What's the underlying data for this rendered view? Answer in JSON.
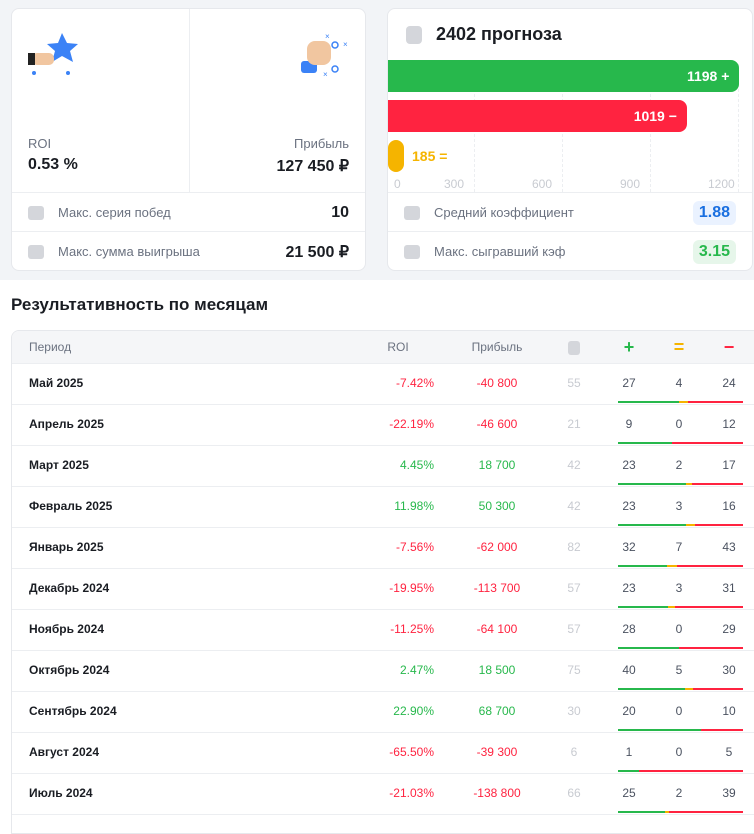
{
  "summary": {
    "roi_label": "ROI",
    "roi_value": "0.53 %",
    "profit_label": "Прибыль",
    "profit_value": "127 450 ₽",
    "max_streak_label": "Макс. серия побед",
    "max_streak_value": "10",
    "max_win_label": "Макс. сумма выигрыша",
    "max_win_value": "21 500 ₽"
  },
  "forecasts": {
    "title": "2402 прогноза",
    "wins": 1198,
    "wins_label": "1198 +",
    "losses": 1019,
    "losses_label": "1019 −",
    "draws": 185,
    "draws_label": "185 =",
    "axis": [
      "0",
      "300",
      "600",
      "900",
      "1200"
    ],
    "axis_max": 1200,
    "avg_coef_label": "Средний коэффициент",
    "avg_coef_value": "1.88",
    "max_coef_label": "Макс. сыгравший кэф",
    "max_coef_value": "3.15",
    "colors": {
      "win": "#27b84c",
      "loss": "#ff2340",
      "draw": "#f5b400"
    }
  },
  "monthly": {
    "title": "Результативность по месяцам",
    "headers": {
      "period": "Период",
      "roi": "ROI",
      "profit": "Прибыль",
      "plus": "+",
      "eq": "=",
      "minus": "−"
    },
    "rows": [
      {
        "period": "Май 2025",
        "roi": "-7.42%",
        "profit": "-40 800",
        "count": "55",
        "w": "27",
        "d": "4",
        "l": "24"
      },
      {
        "period": "Апрель 2025",
        "roi": "-22.19%",
        "profit": "-46 600",
        "count": "21",
        "w": "9",
        "d": "0",
        "l": "12"
      },
      {
        "period": "Март 2025",
        "roi": "4.45%",
        "profit": "18 700",
        "count": "42",
        "w": "23",
        "d": "2",
        "l": "17"
      },
      {
        "period": "Февраль 2025",
        "roi": "11.98%",
        "profit": "50 300",
        "count": "42",
        "w": "23",
        "d": "3",
        "l": "16"
      },
      {
        "period": "Январь 2025",
        "roi": "-7.56%",
        "profit": "-62 000",
        "count": "82",
        "w": "32",
        "d": "7",
        "l": "43"
      },
      {
        "period": "Декабрь 2024",
        "roi": "-19.95%",
        "profit": "-113 700",
        "count": "57",
        "w": "23",
        "d": "3",
        "l": "31"
      },
      {
        "period": "Ноябрь 2024",
        "roi": "-11.25%",
        "profit": "-64 100",
        "count": "57",
        "w": "28",
        "d": "0",
        "l": "29"
      },
      {
        "period": "Октябрь 2024",
        "roi": "2.47%",
        "profit": "18 500",
        "count": "75",
        "w": "40",
        "d": "5",
        "l": "30"
      },
      {
        "period": "Сентябрь 2024",
        "roi": "22.90%",
        "profit": "68 700",
        "count": "30",
        "w": "20",
        "d": "0",
        "l": "10"
      },
      {
        "period": "Август 2024",
        "roi": "-65.50%",
        "profit": "-39 300",
        "count": "6",
        "w": "1",
        "d": "0",
        "l": "5"
      },
      {
        "period": "Июль 2024",
        "roi": "-21.03%",
        "profit": "-138 800",
        "count": "66",
        "w": "25",
        "d": "2",
        "l": "39"
      }
    ]
  }
}
